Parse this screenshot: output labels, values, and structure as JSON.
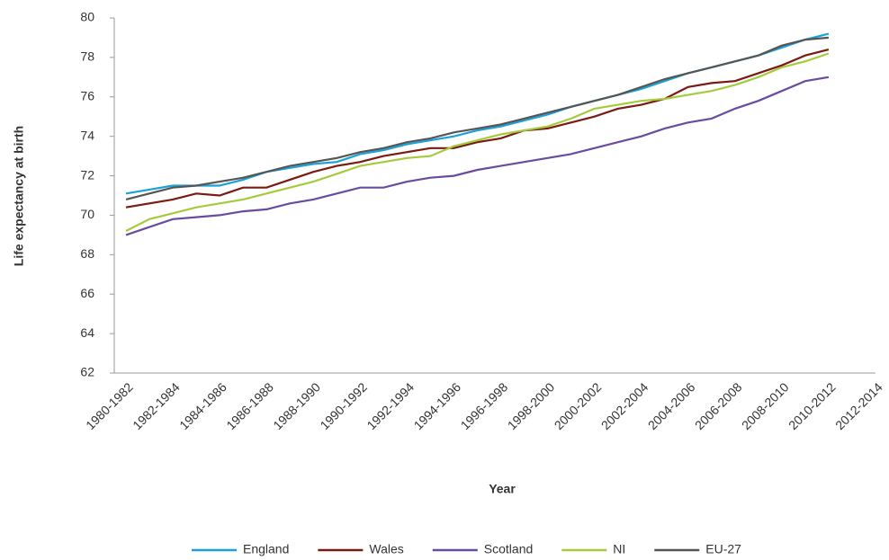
{
  "chart_data": {
    "type": "line",
    "x_label": "Year",
    "y_label": "Life expectancy at birth",
    "categories": [
      "1980-1982",
      null,
      "1982-1984",
      null,
      "1984-1986",
      null,
      "1986-1988",
      null,
      "1988-1990",
      null,
      "1990-1992",
      null,
      "1992-1994",
      null,
      "1994-1996",
      null,
      "1996-1998",
      null,
      "1998-2000",
      null,
      "2000-2002",
      null,
      "2002-2004",
      null,
      "2004-2006",
      null,
      "2006-2008",
      null,
      "2008-2010",
      null,
      "2010-2012",
      null,
      "2012-2014"
    ],
    "series": [
      {
        "name": "England",
        "color": "#1ba1d8",
        "values": [
          71.1,
          71.3,
          71.5,
          71.5,
          71.5,
          71.8,
          72.2,
          72.4,
          72.6,
          72.7,
          73.1,
          73.3,
          73.6,
          73.8,
          74.0,
          74.3,
          74.5,
          74.8,
          75.1,
          75.5,
          75.8,
          76.1,
          76.4,
          76.8,
          77.2,
          77.5,
          77.8,
          78.1,
          78.5,
          78.9,
          79.2,
          null,
          null
        ]
      },
      {
        "name": "Wales",
        "color": "#7a1a12",
        "values": [
          70.4,
          70.6,
          70.8,
          71.1,
          71.0,
          71.4,
          71.4,
          71.8,
          72.2,
          72.5,
          72.7,
          73.0,
          73.2,
          73.4,
          73.4,
          73.7,
          73.9,
          74.3,
          74.4,
          74.7,
          75.0,
          75.4,
          75.6,
          75.9,
          76.5,
          76.7,
          76.8,
          77.2,
          77.6,
          78.1,
          78.4,
          null,
          null
        ]
      },
      {
        "name": "Scotland",
        "color": "#6a4ba0",
        "values": [
          69.0,
          69.4,
          69.8,
          69.9,
          70.0,
          70.2,
          70.3,
          70.6,
          70.8,
          71.1,
          71.4,
          71.4,
          71.7,
          71.9,
          72.0,
          72.3,
          72.5,
          72.7,
          72.9,
          73.1,
          73.4,
          73.7,
          74.0,
          74.4,
          74.7,
          74.9,
          75.4,
          75.8,
          76.3,
          76.8,
          77.0,
          null,
          null
        ]
      },
      {
        "name": "NI",
        "color": "#a5cb3c",
        "values": [
          69.2,
          69.8,
          70.1,
          70.4,
          70.6,
          70.8,
          71.1,
          71.4,
          71.7,
          72.1,
          72.5,
          72.7,
          72.9,
          73.0,
          73.5,
          73.8,
          74.1,
          74.3,
          74.5,
          74.9,
          75.4,
          75.6,
          75.8,
          75.9,
          76.1,
          76.3,
          76.6,
          77.0,
          77.5,
          77.8,
          78.2,
          null,
          null
        ]
      },
      {
        "name": "EU-27",
        "color": "#555555",
        "values": [
          70.8,
          71.1,
          71.4,
          71.5,
          71.7,
          71.9,
          72.2,
          72.5,
          72.7,
          72.9,
          73.2,
          73.4,
          73.7,
          73.9,
          74.2,
          74.4,
          74.6,
          74.9,
          75.2,
          75.5,
          75.8,
          76.1,
          76.5,
          76.9,
          77.2,
          77.5,
          77.8,
          78.1,
          78.6,
          78.9,
          79.0,
          null,
          null
        ]
      }
    ],
    "ylim": [
      62,
      80
    ],
    "yticks": [
      62,
      64,
      66,
      68,
      70,
      72,
      74,
      76,
      78,
      80
    ],
    "grid": false,
    "legend": "bottom"
  }
}
